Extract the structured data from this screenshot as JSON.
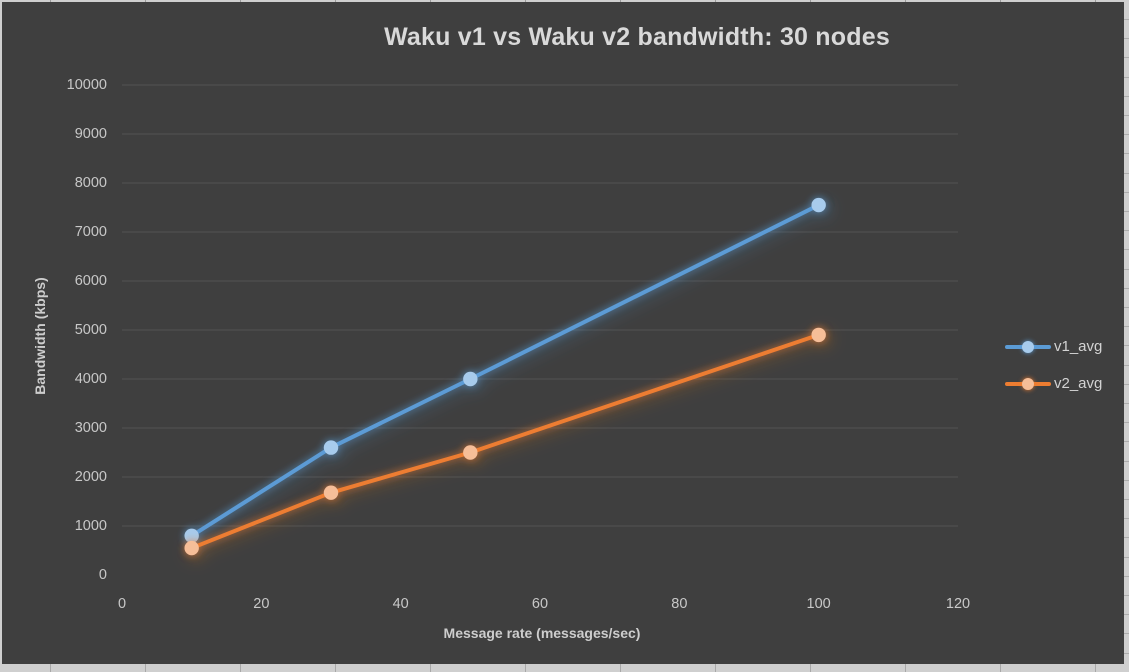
{
  "window": {
    "background_color": "#3F3F3F",
    "frame_color": "#CFCFCF",
    "gridline_color": "#535353",
    "text_color": "#C8C8C8",
    "title_color": "#D9D9D9"
  },
  "chart_data": {
    "type": "line",
    "title": "Waku v1 vs Waku v2 bandwidth: 30 nodes",
    "xlabel": "Message rate (messages/sec)",
    "ylabel": "Bandwidth (kbps)",
    "x": [
      10,
      30,
      50,
      100
    ],
    "series": [
      {
        "name": "v1_avg",
        "values": [
          800,
          2600,
          4000,
          7550
        ],
        "line_color": "#5B9BD5",
        "marker_color": "#A7CBEC"
      },
      {
        "name": "v2_avg",
        "values": [
          550,
          1680,
          2500,
          4900
        ],
        "line_color": "#ED7D31",
        "marker_color": "#F6BE98"
      }
    ],
    "xlim": [
      0,
      120
    ],
    "ylim": [
      0,
      10000
    ],
    "xticks": [
      0,
      20,
      40,
      60,
      80,
      100,
      120
    ],
    "yticks": [
      0,
      1000,
      2000,
      3000,
      4000,
      5000,
      6000,
      7000,
      8000,
      9000,
      10000
    ],
    "grid": "horizontal",
    "legend_position": "right"
  }
}
